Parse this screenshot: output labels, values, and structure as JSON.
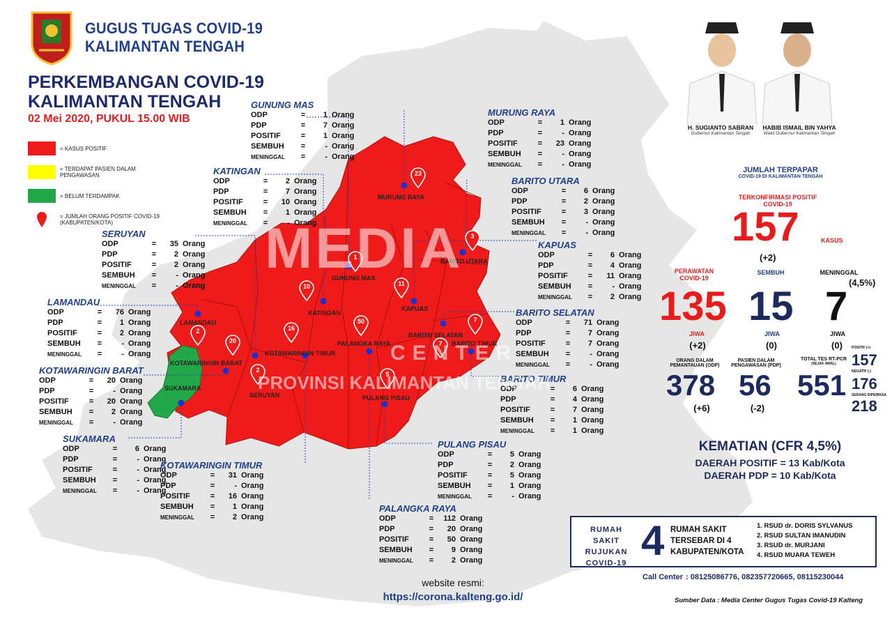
{
  "header": {
    "org_line1": "GUGUS TUGAS COVID-19",
    "org_line2": "KALIMANTAN TENGAH",
    "title_line1": "PERKEMBANGAN COVID-19",
    "title_line2": "KALIMANTAN TENGAH",
    "date": "02 Mei 2020, PUKUL 15.00 WIB"
  },
  "colors": {
    "positive": "#ef1b1b",
    "pdp": "#ffff00",
    "unaffected": "#22a849",
    "title_blue": "#1f3f8c",
    "map_grey": "#e6e6e6"
  },
  "legend": [
    {
      "type": "swatch",
      "color": "#ef1b1b",
      "label": "= KASUS POSITIF"
    },
    {
      "type": "swatch",
      "color": "#ffff00",
      "label": "= TERDAPAT PASIEN DALAM PENGAWASAN"
    },
    {
      "type": "swatch",
      "color": "#22a849",
      "label": "= BELUM TERDAMPAK"
    },
    {
      "type": "pin",
      "label": "= JUMLAH ORANG POSITIF COVID-19 (KABUPATEN/KOTA)"
    }
  ],
  "unit": "Orang",
  "regions": [
    {
      "name": "GUNUNG MAS",
      "map_label": "GUNUNG MAS",
      "pin": "1",
      "status": "positive",
      "odp": "1",
      "pdp": "7",
      "positif": "1",
      "sembuh": "-",
      "meninggal": "-"
    },
    {
      "name": "MURUNG RAYA",
      "map_label": "MURUNG RAYA",
      "pin": "23",
      "status": "positive",
      "odp": "1",
      "pdp": "-",
      "positif": "23",
      "sembuh": "-",
      "meninggal": "-"
    },
    {
      "name": "KATINGAN",
      "map_label": "KATINGAN",
      "pin": "10",
      "status": "positive",
      "odp": "2",
      "pdp": "7",
      "positif": "10",
      "sembuh": "1",
      "meninggal": "-"
    },
    {
      "name": "BARITO UTARA",
      "map_label": "BARITO UTARA",
      "pin": "3",
      "status": "positive",
      "odp": "6",
      "pdp": "2",
      "positif": "3",
      "sembuh": "-",
      "meninggal": "-"
    },
    {
      "name": "SERUYAN",
      "map_label": "SERUYAN",
      "pin": "2",
      "status": "positive",
      "odp": "35",
      "pdp": "2",
      "positif": "2",
      "sembuh": "-",
      "meninggal": "-"
    },
    {
      "name": "KAPUAS",
      "map_label": "KAPUAS",
      "pin": "11",
      "status": "positive",
      "odp": "6",
      "pdp": "4",
      "positif": "11",
      "sembuh": "-",
      "meninggal": "2"
    },
    {
      "name": "LAMANDAU",
      "map_label": "LAMANDAU",
      "pin": "2",
      "status": "positive",
      "odp": "76",
      "pdp": "1",
      "positif": "2",
      "sembuh": "-",
      "meninggal": "-"
    },
    {
      "name": "BARITO SELATAN",
      "map_label": "BARITO SELATAN",
      "pin": "7",
      "status": "positive",
      "odp": "71",
      "pdp": "7",
      "positif": "7",
      "sembuh": "-",
      "meninggal": "-"
    },
    {
      "name": "KOTAWARINGIN BARAT",
      "map_label": "KOTAWARINGIN BARAT",
      "pin": "20",
      "status": "positive",
      "odp": "20",
      "pdp": "-",
      "positif": "20",
      "sembuh": "2",
      "meninggal": "-"
    },
    {
      "name": "BARITO TIMUR",
      "map_label": "BARITO TIMUR",
      "pin": "7",
      "status": "positive",
      "odp": "6",
      "pdp": "4",
      "positif": "7",
      "sembuh": "1",
      "meninggal": "1"
    },
    {
      "name": "SUKAMARA",
      "map_label": "SUKAMARA",
      "pin": "",
      "status": "unaffected",
      "odp": "6",
      "pdp": "-",
      "positif": "-",
      "sembuh": "-",
      "meninggal": "-"
    },
    {
      "name": "KOTAWARINGIN TIMUR",
      "map_label": "KOTAWARINGIN TIMUR",
      "pin": "16",
      "status": "positive",
      "odp": "31",
      "pdp": "-",
      "positif": "16",
      "sembuh": "1",
      "meninggal": "2"
    },
    {
      "name": "PULANG PISAU",
      "map_label": "PULANG PISAU",
      "pin": "5",
      "status": "positive",
      "odp": "5",
      "pdp": "2",
      "positif": "5",
      "sembuh": "1",
      "meninggal": "-"
    },
    {
      "name": "PALANGKA RAYA",
      "map_label": "PALANGKA RAYA",
      "pin": "50",
      "status": "positive",
      "odp": "112",
      "pdp": "20",
      "positif": "50",
      "sembuh": "9",
      "meninggal": "2"
    }
  ],
  "stat_labels": {
    "odp": "ODP",
    "pdp": "PDP",
    "positif": "POSITIF",
    "sembuh": "SEMBUH",
    "meninggal": "MENINGGAL"
  },
  "officials": [
    {
      "name": "H. SUGIANTO SABRAN",
      "role": "Gubernur Kalimantan Tengah"
    },
    {
      "name": "HABIB ISMAIL BIN YAHYA",
      "role": "Wakil Gubernur Kalimantan Tengah"
    }
  ],
  "summary": {
    "title": "JUMLAH TERPAPAR",
    "subtitle": "COVID-19 DI KALIMANTAN TENGAH",
    "confirmed_label": "TERKONFIRMASI POSITIF COVID-19",
    "confirmed": "157",
    "confirmed_unit": "KASUS",
    "confirmed_delta": "(+2)",
    "treated_label": "PERAWATAN COVID-19",
    "treated": "135",
    "treated_delta": "(+2)",
    "recovered_label": "SEMBUH",
    "recovered": "15",
    "recovered_delta": "(0)",
    "deaths_label": "MENINGGAL",
    "deaths": "7",
    "deaths_pct": "(4,5%)",
    "deaths_delta": "(0)",
    "unit_jiwa": "JIWA",
    "odp_label": "ORANG DALAM PEMANTAUAN (ODP)",
    "odp": "378",
    "odp_delta": "(+6)",
    "pdp_label": "PASIEN DALAM PENGAWASAN (PDP)",
    "pdp": "56",
    "pdp_delta": "(-2)",
    "tests_label": "TOTAL TES RT-PCR",
    "tests_sub": "(SEJAK AWAL)",
    "tests": "551",
    "tests_pos_label": "POSITIF (+)",
    "tests_pos": "157",
    "tests_neg_label": "NEGATIF (-)",
    "tests_neg": "176",
    "tests_proc_label": "SEDANG DIPERIKSA",
    "tests_proc": "218"
  },
  "cfr": {
    "title": "KEMATIAN (CFR 4,5%)",
    "line1": "DAERAH POSITIF = 13 Kab/Kota",
    "line2": "DAERAH PDP = 10 Kab/Kota"
  },
  "hospital": {
    "label_line1": "RUMAH SAKIT",
    "label_line2": "RUJUKAN",
    "label_line3": "COVID-19",
    "count": "4",
    "desc_line1": "RUMAH SAKIT",
    "desc_line2": "TERSEBAR DI 4",
    "desc_line3": "KABUPATEN/KOTA",
    "list": [
      "1. RSUD dr. DORIS SYLVANUS",
      "2. RSUD SULTAN IMANUDIN",
      "3. RSUD dr. MURJANI",
      "4. RSUD MUARA TEWEH"
    ]
  },
  "call_center": {
    "label": "Call Center",
    "numbers": ": 08125086776, 082357720665, 08115230044"
  },
  "website": {
    "label": "website resmi:",
    "url": "https://corona.kalteng.go.id/"
  },
  "source": "Sumber Data : Media Center Gugus Tugas Covid-19 Kalteng",
  "watermark": {
    "line1": "MEDIA",
    "line2": "CENTER",
    "line3": "PROVINSI KALIMANTAN TENGAH"
  }
}
